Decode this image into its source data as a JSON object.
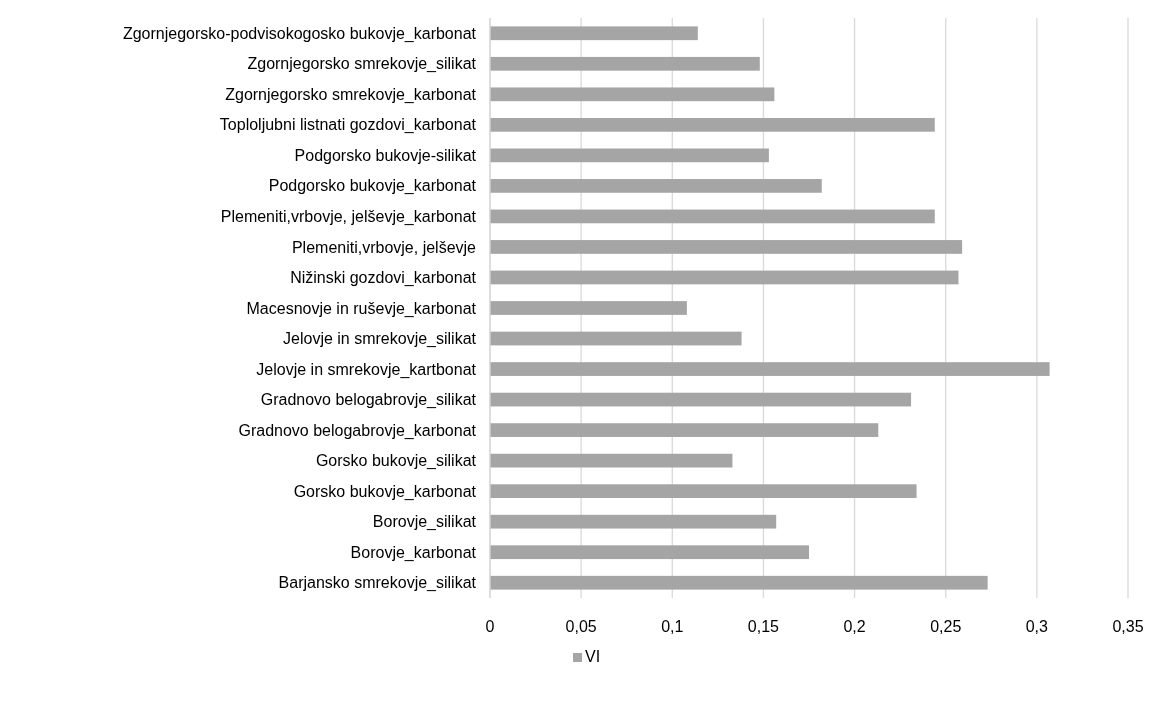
{
  "chart_data": {
    "type": "bar",
    "orientation": "horizontal",
    "categories": [
      "Zgornjegorsko-podvisokogosko bukovje_karbonat",
      "Zgornjegorsko smrekovje_silikat",
      "Zgornjegorsko smrekovje_karbonat",
      "Toploljubni listnati gozdovi_karbonat",
      "Podgorsko bukovje-silikat",
      "Podgorsko bukovje_karbonat",
      "Plemeniti,vrbovje, jelševje_karbonat",
      "Plemeniti,vrbovje, jelševje",
      "Nižinski gozdovi_karbonat",
      "Macesnovje in ruševje_karbonat",
      "Jelovje in smrekovje_silikat",
      "Jelovje in smrekovje_kartbonat",
      "Gradnovo belogabrovje_silikat",
      "Gradnovo belogabrovje_karbonat",
      "Gorsko bukovje_silikat",
      "Gorsko bukovje_karbonat",
      "Borovje_silikat",
      "Borovje_karbonat",
      "Barjansko smrekovje_silikat"
    ],
    "series": [
      {
        "name": "VI",
        "color": "#a5a5a5",
        "values": [
          0.114,
          0.148,
          0.156,
          0.244,
          0.153,
          0.182,
          0.244,
          0.259,
          0.257,
          0.108,
          0.138,
          0.307,
          0.231,
          0.213,
          0.133,
          0.234,
          0.157,
          0.175,
          0.273
        ]
      }
    ],
    "xlim": [
      0,
      0.35
    ],
    "xticks": [
      0,
      {
        "value": 0.05,
        "label": "0,05"
      },
      {
        "value": 0.1,
        "label": "0,1"
      },
      {
        "value": 0.15,
        "label": "0,15"
      },
      {
        "value": 0.2,
        "label": "0,2"
      },
      {
        "value": 0.25,
        "label": "0,25"
      },
      {
        "value": 0.3,
        "label": "0,3"
      },
      {
        "value": 0.35,
        "label": "0,35"
      }
    ],
    "grid": "x",
    "legend": "bottom"
  }
}
